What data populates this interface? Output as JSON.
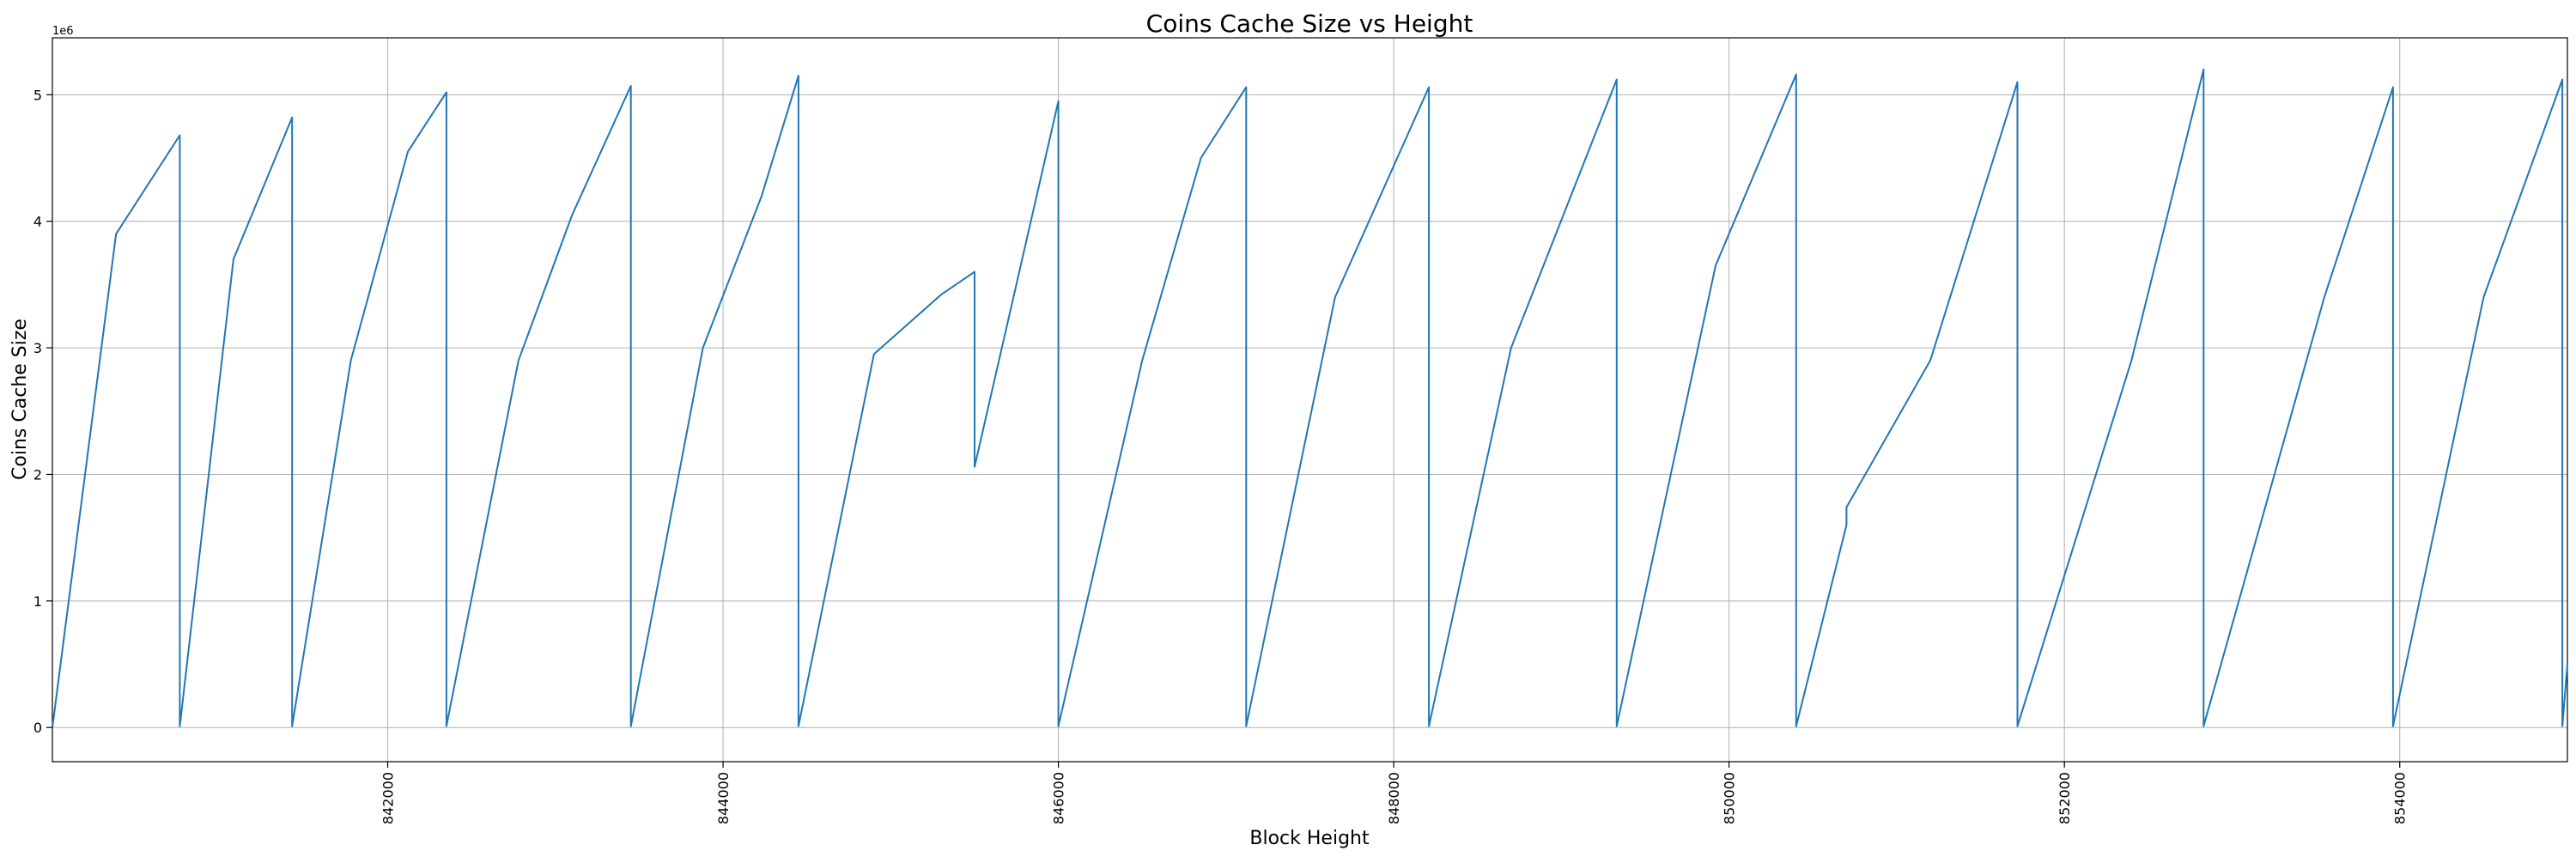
{
  "chart_data": {
    "type": "line",
    "title": "Coins Cache Size vs Height",
    "xlabel": "Block Height",
    "ylabel": "Coins Cache Size",
    "y_offset_label": "1e6",
    "xlim": [
      840000,
      855000
    ],
    "ylim": [
      -270000,
      5450000
    ],
    "x_ticks": [
      842000,
      844000,
      846000,
      848000,
      850000,
      852000,
      854000
    ],
    "x_tick_labels": [
      "842000",
      "844000",
      "846000",
      "848000",
      "850000",
      "852000",
      "854000"
    ],
    "y_ticks": [
      0,
      1000000,
      2000000,
      3000000,
      4000000,
      5000000
    ],
    "y_tick_labels": [
      "0",
      "1",
      "2",
      "3",
      "4",
      "5"
    ],
    "x_tick_rotation": 90,
    "grid": true,
    "legend": "none",
    "series_color": "#1f77b4",
    "x": [
      840000,
      840380,
      840760,
      840760,
      841080,
      841430,
      841430,
      841780,
      842120,
      842350,
      842350,
      842780,
      843100,
      843450,
      843450,
      843880,
      844230,
      844450,
      844450,
      844900,
      845300,
      845500,
      845500,
      846000,
      846000,
      846500,
      846850,
      847120,
      847120,
      847650,
      848210,
      848210,
      848700,
      849330,
      849330,
      849920,
      850400,
      850400,
      850700,
      850700,
      851200,
      851720,
      851720,
      852400,
      852830,
      852830,
      853550,
      853960,
      853960,
      854500,
      854970,
      854970,
      855000
    ],
    "y": [
      0,
      3900000,
      4680000,
      10000,
      3700000,
      4820000,
      10000,
      2900000,
      4550000,
      5020000,
      10000,
      2900000,
      4050000,
      5070000,
      10000,
      3000000,
      4200000,
      5150000,
      10000,
      2950000,
      3420000,
      3600000,
      2060000,
      4950000,
      10000,
      2900000,
      4500000,
      5060000,
      10000,
      3400000,
      5060000,
      10000,
      3000000,
      5120000,
      10000,
      3650000,
      5160000,
      10000,
      1600000,
      1740000,
      2900000,
      5100000,
      10000,
      2900000,
      5200000,
      10000,
      3400000,
      5060000,
      10000,
      3400000,
      5120000,
      10000,
      500000
    ]
  }
}
